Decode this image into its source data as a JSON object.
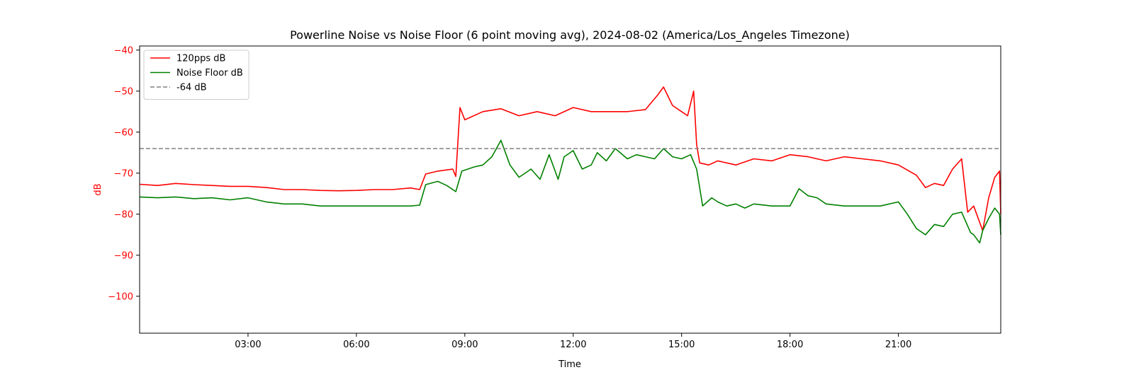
{
  "chart_data": {
    "type": "line",
    "title": "Powerline Noise vs Noise Floor (6 point moving avg), 2024-08-02 (America/Los_Angeles Timezone)",
    "xlabel": "Time",
    "ylabel": "dB",
    "ylabel_color": "#ff0000",
    "ytick_color": "#ff0000",
    "xlim": [
      "00:00",
      "23:50"
    ],
    "ylim": [
      -109,
      -39
    ],
    "x_ticks": [
      "03:00",
      "06:00",
      "09:00",
      "12:00",
      "15:00",
      "18:00",
      "21:00"
    ],
    "y_ticks": [
      "-40",
      "-50",
      "-60",
      "-70",
      "-80",
      "-90",
      "-100"
    ],
    "grid": false,
    "legend_position": "upper-left",
    "series": [
      {
        "name": "120pps dB",
        "color": "#ff0000",
        "style": "solid",
        "x": [
          "00:00",
          "00:30",
          "01:00",
          "01:30",
          "02:00",
          "02:30",
          "03:00",
          "03:30",
          "04:00",
          "04:30",
          "05:00",
          "05:30",
          "06:00",
          "06:30",
          "07:00",
          "07:30",
          "07:45",
          "07:55",
          "08:15",
          "08:40",
          "08:45",
          "08:52",
          "09:00",
          "09:30",
          "10:00",
          "10:30",
          "11:00",
          "11:30",
          "12:00",
          "12:30",
          "13:00",
          "13:30",
          "14:00",
          "14:20",
          "14:30",
          "14:45",
          "15:00",
          "15:10",
          "15:20",
          "15:25",
          "15:30",
          "15:45",
          "16:00",
          "16:30",
          "17:00",
          "17:30",
          "18:00",
          "18:30",
          "19:00",
          "19:30",
          "20:00",
          "20:30",
          "21:00",
          "21:30",
          "21:45",
          "22:00",
          "22:15",
          "22:30",
          "22:45",
          "22:55",
          "23:05",
          "23:20",
          "23:30",
          "23:40",
          "23:48",
          "23:50"
        ],
        "y": [
          -72.7,
          -73.0,
          -72.5,
          -72.8,
          -73.0,
          -73.2,
          -73.2,
          -73.5,
          -74.0,
          -74.0,
          -74.2,
          -74.3,
          -74.2,
          -74.0,
          -74.0,
          -73.6,
          -74.0,
          -70.2,
          -69.5,
          -69.0,
          -70.8,
          -54.0,
          -57.0,
          -55.0,
          -54.3,
          -56.0,
          -55.0,
          -56.0,
          -54.0,
          -55.0,
          -55.0,
          -55.0,
          -54.5,
          -51.0,
          -49.0,
          -53.5,
          -55.0,
          -56.0,
          -50.0,
          -63.0,
          -67.5,
          -68.0,
          -67.0,
          -68.0,
          -66.5,
          -67.0,
          -65.5,
          -66.0,
          -67.0,
          -66.0,
          -66.5,
          -67.0,
          -68.0,
          -70.5,
          -73.5,
          -72.5,
          -73.0,
          -69.0,
          -66.5,
          -79.5,
          -78.0,
          -84.0,
          -76.0,
          -71.0,
          -69.5,
          -80.0
        ]
      },
      {
        "name": "Noise Floor dB",
        "color": "#008000",
        "style": "solid",
        "x": [
          "00:00",
          "00:30",
          "01:00",
          "01:30",
          "02:00",
          "02:30",
          "03:00",
          "03:30",
          "04:00",
          "04:30",
          "05:00",
          "05:30",
          "06:00",
          "06:30",
          "07:00",
          "07:30",
          "07:45",
          "07:55",
          "08:15",
          "08:30",
          "08:45",
          "08:55",
          "09:15",
          "09:30",
          "09:45",
          "10:00",
          "10:15",
          "10:30",
          "10:50",
          "11:05",
          "11:20",
          "11:35",
          "11:45",
          "12:00",
          "12:15",
          "12:30",
          "12:40",
          "12:55",
          "13:10",
          "13:30",
          "13:45",
          "14:00",
          "14:15",
          "14:30",
          "14:45",
          "15:00",
          "15:15",
          "15:25",
          "15:35",
          "15:50",
          "16:00",
          "16:15",
          "16:30",
          "16:45",
          "17:00",
          "17:30",
          "18:00",
          "18:15",
          "18:30",
          "18:45",
          "19:00",
          "19:30",
          "20:00",
          "20:30",
          "21:00",
          "21:15",
          "21:30",
          "21:45",
          "22:00",
          "22:15",
          "22:30",
          "22:45",
          "23:00",
          "23:05",
          "23:15",
          "23:20",
          "23:30",
          "23:40",
          "23:48",
          "23:50"
        ],
        "y": [
          -75.8,
          -76.0,
          -75.8,
          -76.2,
          -76.0,
          -76.5,
          -76.0,
          -77.0,
          -77.5,
          -77.5,
          -78.0,
          -78.0,
          -78.0,
          -78.0,
          -78.0,
          -78.0,
          -77.8,
          -72.8,
          -72.0,
          -73.0,
          -74.5,
          -69.5,
          -68.5,
          -68.0,
          -66.0,
          -62.0,
          -68.0,
          -71.0,
          -69.0,
          -71.5,
          -65.5,
          -71.5,
          -66.0,
          -64.5,
          -69.0,
          -68.0,
          -65.0,
          -67.0,
          -64.0,
          -66.5,
          -65.5,
          -66.0,
          -66.5,
          -64.0,
          -66.0,
          -66.5,
          -65.5,
          -69.0,
          -78.0,
          -76.0,
          -77.0,
          -78.0,
          -77.5,
          -78.5,
          -77.5,
          -78.0,
          -78.0,
          -73.8,
          -75.5,
          -76.0,
          -77.5,
          -78.0,
          -78.0,
          -78.0,
          -77.0,
          -80.0,
          -83.5,
          -85.0,
          -82.5,
          -83.0,
          -80.0,
          -79.5,
          -84.5,
          -85.0,
          -87.0,
          -84.0,
          -81.0,
          -78.5,
          -80.0,
          -85.0
        ]
      },
      {
        "name": "-64 dB",
        "color": "#808080",
        "style": "dashed",
        "x": [
          "00:00",
          "23:50"
        ],
        "y": [
          -64,
          -64
        ]
      }
    ]
  }
}
